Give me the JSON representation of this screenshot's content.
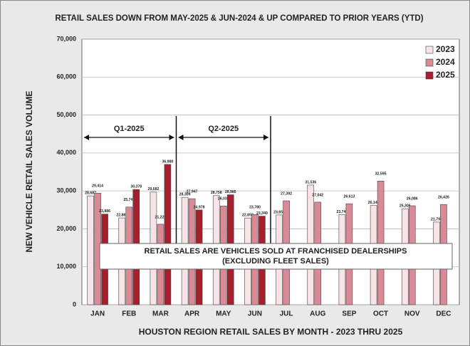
{
  "chart_data": {
    "type": "bar",
    "title": "RETAIL SALES DOWN FROM MAY-2025 & JUN-2024 & UP COMPARED TO PRIOR YEARS (YTD)",
    "x_label": "HOUSTON REGION RETAIL SALES BY MONTH - 2023 THRU 2025",
    "y_label": "NEW VEHICLE RETAIL SALES VOLUME",
    "categories": [
      "JAN",
      "FEB",
      "MAR",
      "APR",
      "MAY",
      "JUN",
      "JUL",
      "AUG",
      "SEP",
      "OCT",
      "NOV",
      "DEC"
    ],
    "series": [
      {
        "name": "2023",
        "color": "#f8e3e6",
        "values": [
          28687,
          22881,
          29682,
          28309,
          28758,
          22858,
          23658,
          31536,
          23746,
          26146,
          25306,
          21790
        ],
        "value_labels": [
          "28,687",
          "22,881",
          "29,682",
          "28,309",
          "28,758",
          "22,858",
          "23,658",
          "31,536",
          "23,746",
          "26,146",
          "25,306",
          "21,790"
        ]
      },
      {
        "name": "2024",
        "color": "#d98a96",
        "values": [
          29414,
          25745,
          21220,
          27947,
          26033,
          23780,
          27392,
          27042,
          26613,
          32595,
          26086,
          26426
        ],
        "value_labels": [
          "29,414",
          "25,745",
          "21,220",
          "27,947",
          "26,033",
          "23,780",
          "27,392",
          "27,042",
          "26,613",
          "32,595",
          "26,086",
          "26,426"
        ]
      },
      {
        "name": "2025",
        "color": "#a51f2e",
        "values": [
          23886,
          30378,
          36980,
          24978,
          28985,
          23349,
          null,
          null,
          null,
          null,
          null,
          null
        ],
        "value_labels": [
          "23,886",
          "30,378",
          "36,980",
          "24,978",
          "28,985",
          "23,349",
          null,
          null,
          null,
          null,
          null,
          null
        ]
      }
    ],
    "ylim": [
      0,
      70000
    ],
    "yticks": [
      0,
      {
        "value": 10000,
        "label": "10,000"
      },
      {
        "value": 20000,
        "label": "20,000"
      },
      {
        "value": 30000,
        "label": "30,000"
      },
      {
        "value": 40000,
        "label": "40,000"
      },
      {
        "value": 50000,
        "label": "50,000"
      },
      {
        "value": 60000,
        "label": "60,000"
      },
      {
        "value": 70000,
        "label": "70,000"
      }
    ],
    "grid": true,
    "legend": "top-right",
    "annotations": {
      "quarters": [
        "Q1-2025",
        "Q2-2025"
      ],
      "note": [
        "RETAIL SALES ARE VEHICLES SOLD AT FRANCHISED DEALERSHIPS",
        "(EXCLUDING FLEET SALES)"
      ]
    }
  }
}
